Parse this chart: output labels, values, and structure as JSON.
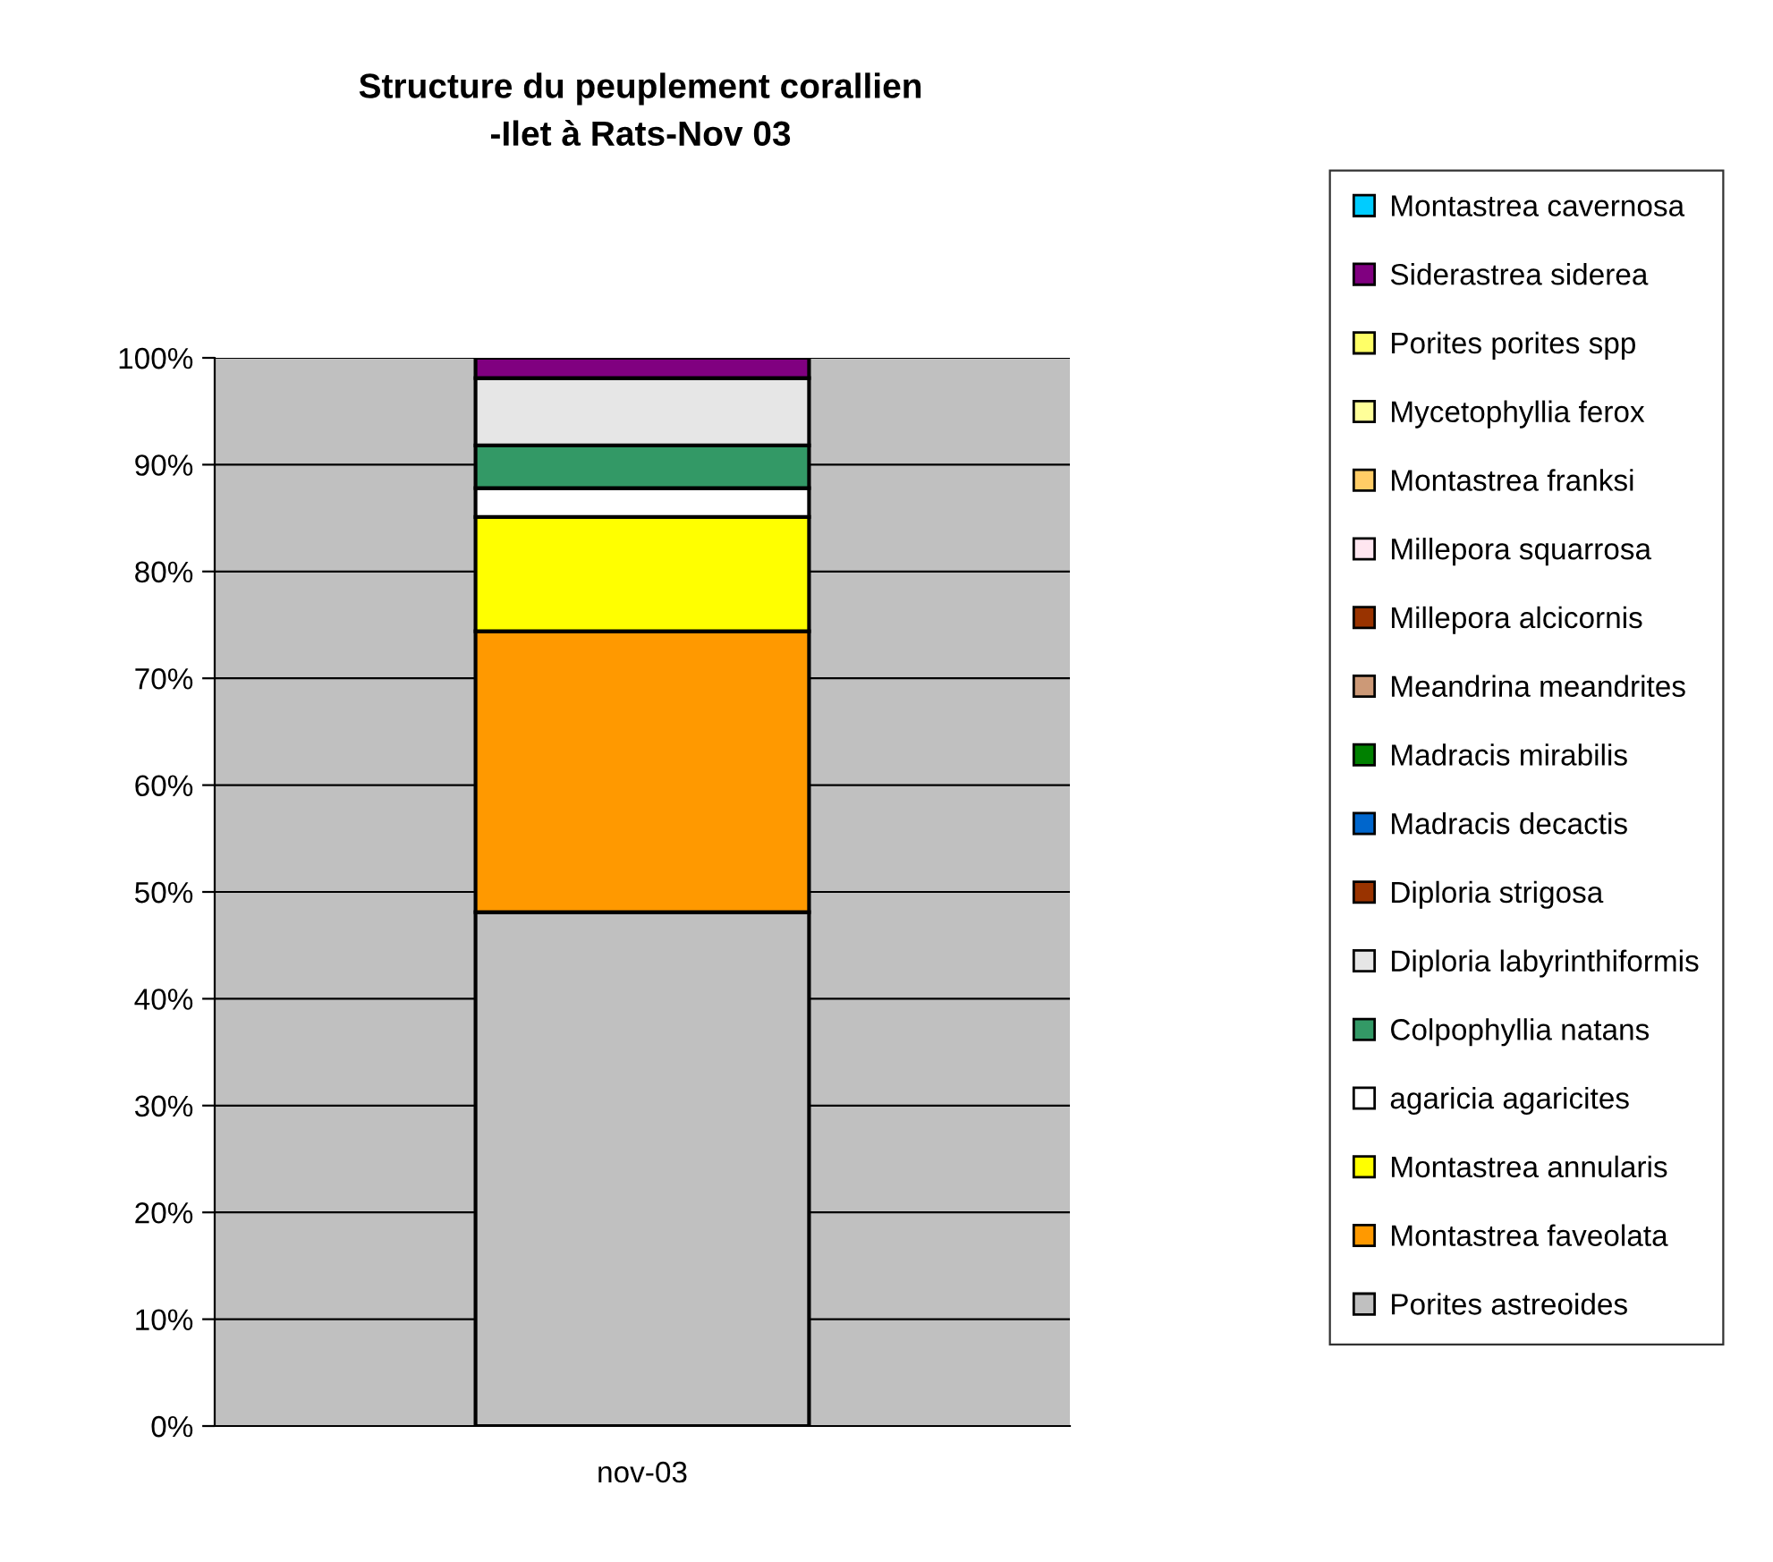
{
  "chart_data": {
    "type": "bar",
    "stacked": true,
    "title": "Structure du peuplement corallien\n-Ilet à Rats-Nov 03",
    "categories": [
      "nov-03"
    ],
    "series": [
      {
        "name": "Porites astreoides",
        "color": "#c0c0c0",
        "values": [
          48.1
        ]
      },
      {
        "name": "Montastrea faveolata",
        "color": "#ff9900",
        "values": [
          26.3
        ]
      },
      {
        "name": "Montastrea annularis",
        "color": "#ffff00",
        "values": [
          10.7
        ]
      },
      {
        "name": "agaricia agaricites",
        "color": "#ffffff",
        "values": [
          2.7
        ]
      },
      {
        "name": "Colpophyllia natans",
        "color": "#339966",
        "values": [
          4.0
        ]
      },
      {
        "name": "Diploria labyrinthiformis",
        "color": "#e6e6e6",
        "values": [
          6.3
        ]
      },
      {
        "name": "Diploria strigosa",
        "color": "#993300",
        "values": [
          0
        ]
      },
      {
        "name": "Madracis decactis",
        "color": "#0066cc",
        "values": [
          0
        ]
      },
      {
        "name": "Madracis mirabilis",
        "color": "#008000",
        "values": [
          0
        ]
      },
      {
        "name": "Meandrina meandrites",
        "color": "#cc9977",
        "values": [
          0
        ]
      },
      {
        "name": "Millepora alcicornis",
        "color": "#993300",
        "values": [
          0
        ]
      },
      {
        "name": "Millepora squarrosa",
        "color": "#ffe6f0",
        "values": [
          0
        ]
      },
      {
        "name": "Montastrea franksi",
        "color": "#ffcc66",
        "values": [
          0
        ]
      },
      {
        "name": "Mycetophyllia ferox",
        "color": "#ffff99",
        "values": [
          0
        ]
      },
      {
        "name": "Porites porites spp",
        "color": "#ffff66",
        "values": [
          0
        ]
      },
      {
        "name": "Siderastrea siderea",
        "color": "#800080",
        "values": [
          1.9
        ]
      },
      {
        "name": "Montastrea cavernosa",
        "color": "#00ccff",
        "values": [
          0
        ]
      }
    ],
    "ylim": [
      0,
      100
    ],
    "yticks": [
      {
        "value": 0,
        "label": "0%"
      },
      {
        "value": 10,
        "label": "10%"
      },
      {
        "value": 20,
        "label": "20%"
      },
      {
        "value": 30,
        "label": "30%"
      },
      {
        "value": 40,
        "label": "40%"
      },
      {
        "value": 50,
        "label": "50%"
      },
      {
        "value": 60,
        "label": "60%"
      },
      {
        "value": 70,
        "label": "70%"
      },
      {
        "value": 80,
        "label": "80%"
      },
      {
        "value": 90,
        "label": "90%"
      },
      {
        "value": 100,
        "label": "100%"
      }
    ],
    "grid": "y",
    "legend": "right"
  }
}
